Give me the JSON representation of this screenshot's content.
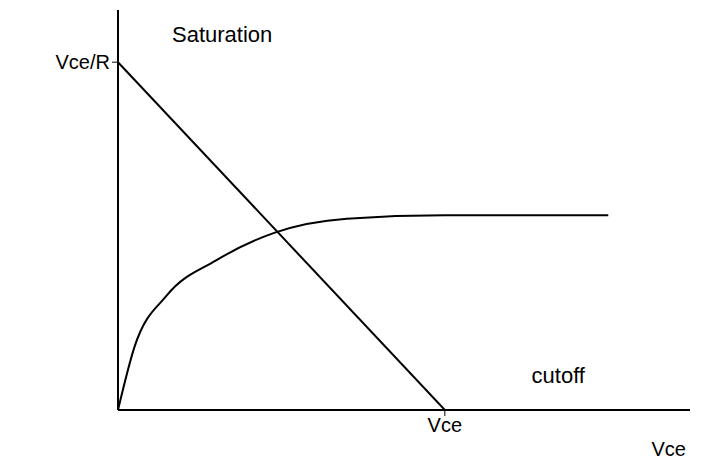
{
  "chart_data": {
    "type": "line",
    "xlabel": "Vce",
    "xlim": [
      0,
      1.75
    ],
    "ylim": [
      0,
      1.15
    ],
    "xticks": [
      {
        "value": 1,
        "label": "Vce"
      }
    ],
    "yticks": [
      {
        "value": 1,
        "label": "Vce/R"
      }
    ],
    "grid": false,
    "series": [
      {
        "x": [
          0,
          1
        ],
        "values": [
          1,
          0
        ],
        "color": "#000000",
        "line_style": "solid"
      },
      {
        "x": [
          0,
          0.05,
          0.15,
          0.3,
          0.48,
          0.7,
          1.0,
          1.5
        ],
        "values": [
          0,
          0.18,
          0.33,
          0.43,
          0.51,
          0.55,
          0.56,
          0.56
        ],
        "color": "#000000",
        "line_style": "solid"
      }
    ],
    "annotations": [
      {
        "text": "Saturation",
        "x": 0.15,
        "y": 1.08
      },
      {
        "text": "cutoff",
        "x": 1.25,
        "y": 0.1
      }
    ]
  }
}
